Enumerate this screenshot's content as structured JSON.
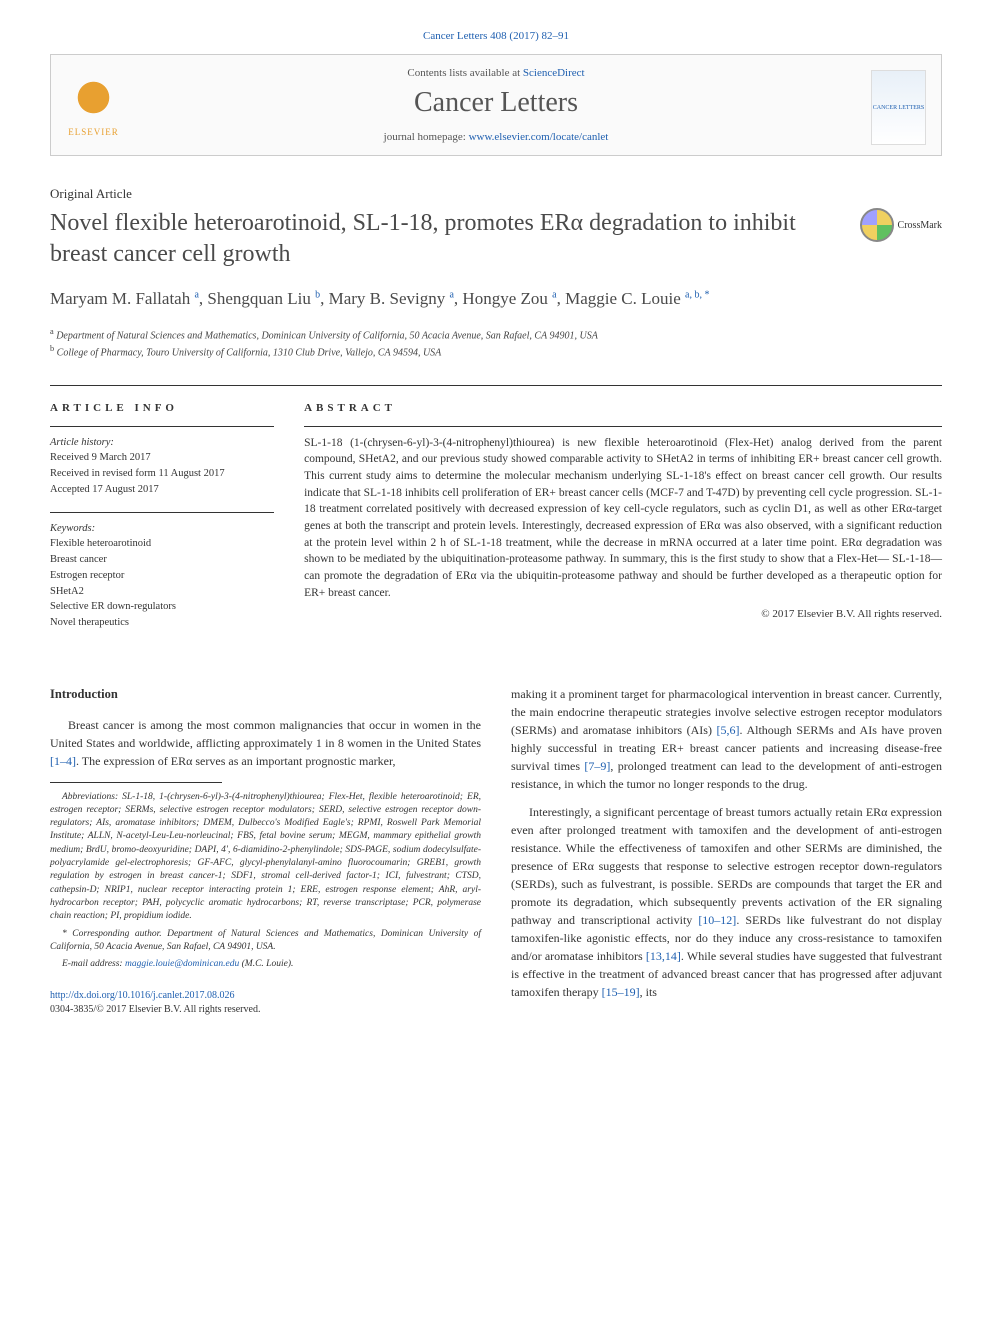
{
  "citation": "Cancer Letters 408 (2017) 82–91",
  "header": {
    "contents_prefix": "Contents lists available at ",
    "contents_link": "ScienceDirect",
    "journal": "Cancer Letters",
    "homepage_prefix": "journal homepage: ",
    "homepage_url": "www.elsevier.com/locate/canlet",
    "publisher": "ELSEVIER",
    "cover_label": "CANCER LETTERS"
  },
  "article": {
    "type": "Original Article",
    "title": "Novel flexible heteroarotinoid, SL-1-18, promotes ERα degradation to inhibit breast cancer cell growth",
    "crossmark": "CrossMark"
  },
  "authors_html": "Maryam M. Fallatah <sup>a</sup>, Shengquan Liu <sup>b</sup>, Mary B. Sevigny <sup>a</sup>, Hongye Zou <sup>a</sup>, Maggie C. Louie <sup>a, b, *</sup>",
  "affiliations": {
    "a": "Department of Natural Sciences and Mathematics, Dominican University of California, 50 Acacia Avenue, San Rafael, CA 94901, USA",
    "b": "College of Pharmacy, Touro University of California, 1310 Club Drive, Vallejo, CA 94594, USA"
  },
  "info": {
    "heading": "ARTICLE INFO",
    "history_label": "Article history:",
    "received": "Received 9 March 2017",
    "revised": "Received in revised form 11 August 2017",
    "accepted": "Accepted 17 August 2017",
    "keywords_label": "Keywords:",
    "keywords": [
      "Flexible heteroarotinoid",
      "Breast cancer",
      "Estrogen receptor",
      "SHetA2",
      "Selective ER down-regulators",
      "Novel therapeutics"
    ]
  },
  "abstract": {
    "heading": "ABSTRACT",
    "text": "SL-1-18 (1-(chrysen-6-yl)-3-(4-nitrophenyl)thiourea) is new flexible heteroarotinoid (Flex-Het) analog derived from the parent compound, SHetA2, and our previous study showed comparable activity to SHetA2 in terms of inhibiting ER+ breast cancer cell growth. This current study aims to determine the molecular mechanism underlying SL-1-18's effect on breast cancer cell growth. Our results indicate that SL-1-18 inhibits cell proliferation of ER+ breast cancer cells (MCF-7 and T-47D) by preventing cell cycle progression. SL-1-18 treatment correlated positively with decreased expression of key cell-cycle regulators, such as cyclin D1, as well as other ERα-target genes at both the transcript and protein levels. Interestingly, decreased expression of ERα was also observed, with a significant reduction at the protein level within 2 h of SL-1-18 treatment, while the decrease in mRNA occurred at a later time point. ERα degradation was shown to be mediated by the ubiquitination-proteasome pathway. In summary, this is the first study to show that a Flex-Het— SL-1-18— can promote the degradation of ERα via the ubiquitin-proteasome pathway and should be further developed as a therapeutic option for ER+ breast cancer.",
    "copyright": "© 2017 Elsevier B.V. All rights reserved."
  },
  "body": {
    "intro_heading": "Introduction",
    "left_p1": "Breast cancer is among the most common malignancies that occur in women in the United States and worldwide, afflicting approximately 1 in 8 women in the United States [1–4]. The expression of ERα serves as an important prognostic marker,",
    "right_p1": "making it a prominent target for pharmacological intervention in breast cancer. Currently, the main endocrine therapeutic strategies involve selective estrogen receptor modulators (SERMs) and aromatase inhibitors (AIs) [5,6]. Although SERMs and AIs have proven highly successful in treating ER+ breast cancer patients and increasing disease-free survival times [7–9], prolonged treatment can lead to the development of anti-estrogen resistance, in which the tumor no longer responds to the drug.",
    "right_p2": "Interestingly, a significant percentage of breast tumors actually retain ERα expression even after prolonged treatment with tamoxifen and the development of anti-estrogen resistance. While the effectiveness of tamoxifen and other SERMs are diminished, the presence of ERα suggests that response to selective estrogen receptor down-regulators (SERDs), such as fulvestrant, is possible. SERDs are compounds that target the ER and promote its degradation, which subsequently prevents activation of the ER signaling pathway and transcriptional activity [10–12]. SERDs like fulvestrant do not display tamoxifen-like agonistic effects, nor do they induce any cross-resistance to tamoxifen and/or aromatase inhibitors [13,14]. While several studies have suggested that fulvestrant is effective in the treatment of advanced breast cancer that has progressed after adjuvant tamoxifen therapy [15–19], its"
  },
  "footnotes": {
    "abbrev_label": "Abbreviations:",
    "abbrev": " SL-1-18, 1-(chrysen-6-yl)-3-(4-nitrophenyl)thiourea; Flex-Het, flexible heteroarotinoid; ER, estrogen receptor; SERMs, selective estrogen receptor modulators; SERD, selective estrogen receptor down-regulators; AIs, aromatase inhibitors; DMEM, Dulbecco's Modified Eagle's; RPMI, Roswell Park Memorial Institute; ALLN, N-acetyl-Leu-Leu-norleucinal; FBS, fetal bovine serum; MEGM, mammary epithelial growth medium; BrdU, bromo-deoxyuridine; DAPI, 4′, 6-diamidino-2-phenylindole; SDS-PAGE, sodium dodecylsulfate-polyacrylamide gel-electrophoresis; GF-AFC, glycyl-phenylalanyl-amino fluorocoumarin; GREB1, growth regulation by estrogen in breast cancer-1; SDF1, stromal cell-derived factor-1; ICI, fulvestrant; CTSD, cathepsin-D; NRIP1, nuclear receptor interacting protein 1; ERE, estrogen response element; AhR, aryl-hydrocarbon receptor; PAH, polycyclic aromatic hydrocarbons; RT, reverse transcriptase; PCR, polymerase chain reaction; PI, propidium iodide.",
    "corr": "* Corresponding author. Department of Natural Sciences and Mathematics, Dominican University of California, 50 Acacia Avenue, San Rafael, CA 94901, USA.",
    "email_label": "E-mail address: ",
    "email": "maggie.louie@dominican.edu",
    "email_suffix": " (M.C. Louie)."
  },
  "footer": {
    "doi": "http://dx.doi.org/10.1016/j.canlet.2017.08.026",
    "issn": "0304-3835/© 2017 Elsevier B.V. All rights reserved."
  },
  "refs": {
    "r1_4": "[1–4]",
    "r5_6": "[5,6]",
    "r7_9": "[7–9]",
    "r10_12": "[10–12]",
    "r13_14": "[13,14]",
    "r15_19": "[15–19]"
  }
}
